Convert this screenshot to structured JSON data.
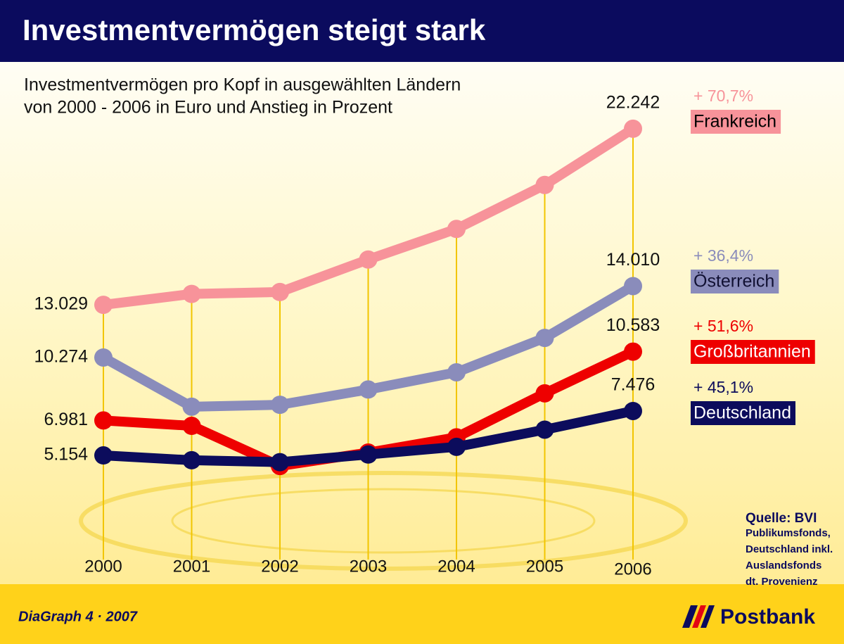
{
  "chart_data": {
    "type": "line",
    "title": "Investmentvermögen steigt stark",
    "subtitle": [
      "Investmentvermögen pro Kopf in ausgewählten Ländern",
      "von 2000 - 2006 in Euro und Anstieg in Prozent"
    ],
    "categories": [
      "2000",
      "2001",
      "2002",
      "2003",
      "2004",
      "2005",
      "2006"
    ],
    "ylim": [
      0,
      25000
    ],
    "series": [
      {
        "name": "Frankreich",
        "color": "#f7939a",
        "change_label": "+ 70,7%",
        "label_color": "#000000",
        "values": [
          13029,
          13600,
          13700,
          15400,
          17000,
          19300,
          22242
        ],
        "value_labels": [
          "13.029",
          null,
          null,
          null,
          null,
          null,
          "22.242"
        ]
      },
      {
        "name": "Österreich",
        "color": "#8a8cbb",
        "change_label": "+ 36,4%",
        "label_color": "#111133",
        "values": [
          10274,
          7700,
          7800,
          8600,
          9500,
          11300,
          14010
        ],
        "value_labels": [
          "10.274",
          null,
          null,
          null,
          null,
          null,
          "14.010"
        ]
      },
      {
        "name": "Großbritannien",
        "color": "#ee0000",
        "change_label": "+ 51,6%",
        "label_color": "#ffffff",
        "values": [
          6981,
          6700,
          4600,
          5300,
          6100,
          8400,
          10583
        ],
        "value_labels": [
          "6.981",
          null,
          null,
          null,
          null,
          null,
          "10.583"
        ]
      },
      {
        "name": "Deutschland",
        "color": "#0c0c5c",
        "change_label": "+ 45,1%",
        "label_color": "#ffffff",
        "values": [
          5154,
          4900,
          4800,
          5200,
          5600,
          6500,
          7476
        ],
        "value_labels": [
          "5.154",
          null,
          null,
          null,
          null,
          null,
          "7.476"
        ]
      }
    ],
    "source": [
      "Quelle: BVI",
      "Publikumsfonds,",
      "Deutschland inkl.",
      "Auslandsfonds",
      "dt. Provenienz"
    ]
  },
  "footer": {
    "left": "DiaGraph 4 · 2007",
    "brand": "Postbank"
  }
}
